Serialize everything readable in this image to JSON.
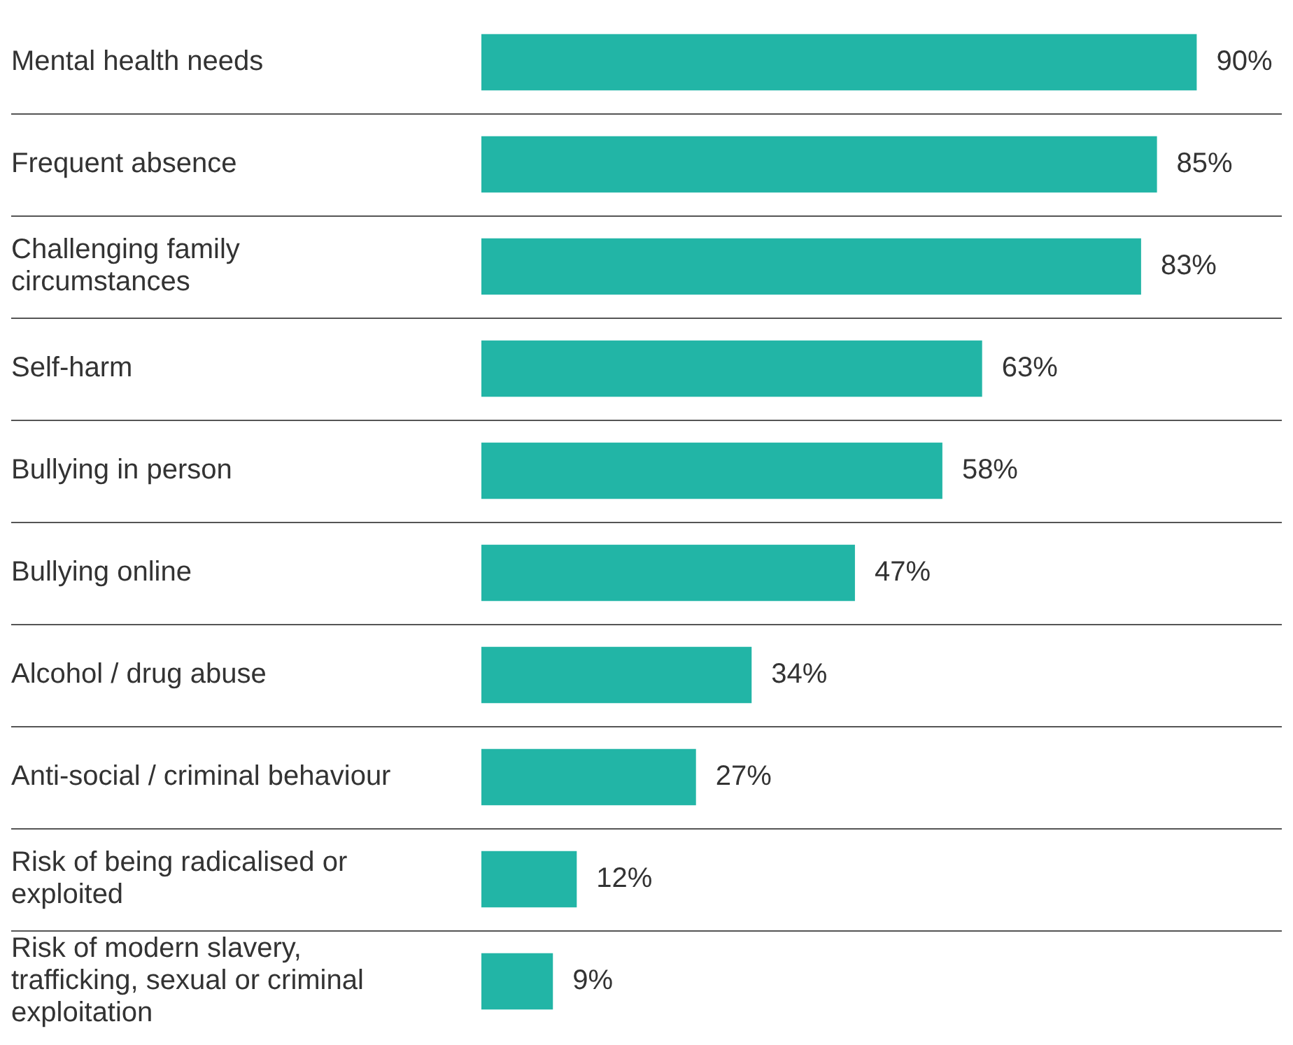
{
  "chart_data": {
    "type": "bar",
    "orientation": "horizontal",
    "categories": [
      "Mental health needs",
      "Frequent absence",
      "Challenging family circumstances",
      "Self-harm",
      "Bullying in person",
      "Bullying online",
      "Alcohol / drug abuse",
      "Anti-social / criminal behaviour",
      "Risk of being radicalised or exploited",
      "Risk of modern slavery, trafficking, sexual or criminal exploitation"
    ],
    "values": [
      90,
      85,
      83,
      63,
      58,
      47,
      34,
      27,
      12,
      9
    ],
    "value_labels": [
      "90%",
      "85%",
      "83%",
      "63%",
      "58%",
      "47%",
      "34%",
      "27%",
      "12%",
      "9%"
    ],
    "color": "#22b5a6",
    "xlim": [
      0,
      100
    ],
    "grid": "y",
    "legend": false,
    "tick_labels": "y"
  }
}
